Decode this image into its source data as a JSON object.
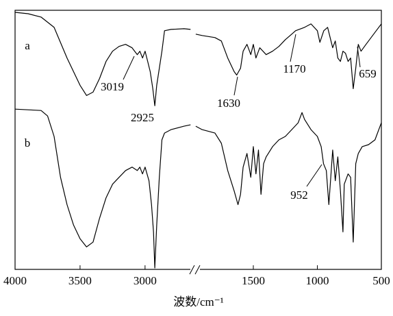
{
  "chart_data": {
    "type": "line",
    "xlabel": "波数/cm⁻¹",
    "xlim": [
      4000,
      500
    ],
    "x_break": [
      2620,
      1960
    ],
    "ylim": [
      0,
      380
    ],
    "xticks": [
      4000,
      3500,
      3000,
      1500,
      1000,
      500
    ],
    "series": [
      {
        "name": "a",
        "color": "#000000",
        "x": [
          4000,
          3900,
          3800,
          3700,
          3600,
          3500,
          3450,
          3400,
          3350,
          3300,
          3250,
          3200,
          3150,
          3100,
          3060,
          3040,
          3019,
          3000,
          2980,
          2960,
          2940,
          2925,
          2910,
          2890,
          2870,
          2850,
          2800,
          2700,
          2650,
          2300,
          1950,
          1900,
          1800,
          1750,
          1700,
          1650,
          1630,
          1600,
          1580,
          1550,
          1520,
          1500,
          1480,
          1450,
          1400,
          1350,
          1300,
          1250,
          1200,
          1170,
          1100,
          1050,
          1000,
          980,
          950,
          920,
          900,
          880,
          860,
          840,
          820,
          800,
          780,
          760,
          740,
          720,
          700,
          680,
          659,
          620,
          580,
          540,
          500
        ],
        "values": [
          377,
          375,
          370,
          355,
          310,
          270,
          255,
          260,
          280,
          305,
          320,
          327,
          330,
          325,
          315,
          320,
          310,
          320,
          305,
          290,
          265,
          240,
          270,
          295,
          320,
          350,
          352,
          353,
          352,
          null,
          345,
          343,
          340,
          335,
          310,
          290,
          285,
          295,
          320,
          330,
          315,
          330,
          310,
          325,
          315,
          320,
          327,
          337,
          345,
          350,
          355,
          360,
          350,
          333,
          350,
          355,
          340,
          325,
          335,
          310,
          305,
          320,
          317,
          305,
          310,
          265,
          295,
          330,
          320,
          330,
          340,
          350,
          360
        ]
      },
      {
        "name": "b",
        "color": "#000000",
        "x": [
          4000,
          3800,
          3750,
          3700,
          3650,
          3600,
          3550,
          3500,
          3450,
          3400,
          3350,
          3300,
          3250,
          3200,
          3150,
          3100,
          3060,
          3040,
          3020,
          3000,
          2970,
          2950,
          2935,
          2925,
          2910,
          2890,
          2870,
          2850,
          2800,
          2700,
          2650,
          2300,
          1950,
          1900,
          1800,
          1750,
          1700,
          1650,
          1620,
          1600,
          1580,
          1550,
          1520,
          1500,
          1480,
          1460,
          1440,
          1420,
          1400,
          1350,
          1300,
          1250,
          1200,
          1150,
          1120,
          1100,
          1050,
          1000,
          970,
          952,
          930,
          910,
          895,
          880,
          860,
          840,
          820,
          800,
          790,
          760,
          740,
          720,
          700,
          680,
          650,
          600,
          550,
          500
        ],
        "values": [
          235,
          233,
          225,
          195,
          135,
          95,
          65,
          45,
          33,
          40,
          75,
          105,
          125,
          135,
          145,
          150,
          145,
          150,
          140,
          150,
          130,
          95,
          55,
          2,
          65,
          135,
          190,
          200,
          205,
          210,
          212,
          null,
          210,
          205,
          200,
          185,
          145,
          115,
          95,
          110,
          150,
          170,
          135,
          180,
          140,
          175,
          110,
          155,
          165,
          180,
          190,
          195,
          205,
          215,
          230,
          220,
          205,
          195,
          180,
          155,
          145,
          95,
          135,
          175,
          130,
          165,
          115,
          55,
          125,
          140,
          135,
          40,
          155,
          170,
          180,
          183,
          190,
          215
        ]
      }
    ],
    "annotations": [
      "3019",
      "2925",
      "1630",
      "1170",
      "659",
      "952"
    ]
  }
}
